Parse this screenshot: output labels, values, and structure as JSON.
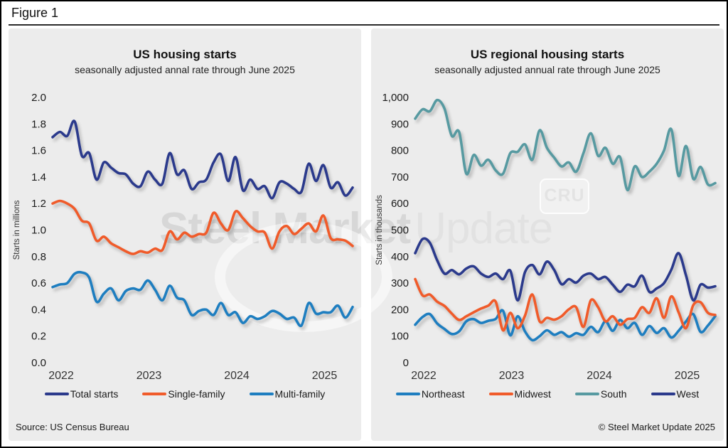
{
  "figure_label": "Figure 1",
  "watermark": {
    "text_bold": "Steel Market",
    "text_light": "Update",
    "logo": "CRU"
  },
  "footnotes": {
    "source": "Source: US Census Bureau",
    "copyright": "© Steel Market Update 2025"
  },
  "panel_bg": "#ececec",
  "chart_data": [
    {
      "type": "line",
      "title": "US housing starts",
      "subtitle": "seasonally adjusted annal rate through June 2025",
      "ylabel": "Starts in millions",
      "xlabel": "",
      "x_range": "Jan 2022 – Jun 2025, monthly (42 points)",
      "grid": false,
      "legend_position": "bottom",
      "ylim": [
        0,
        2.0
      ],
      "yticks": [
        {
          "label": "2.0",
          "value": 2.0
        },
        {
          "label": "1.8",
          "value": 1.8
        },
        {
          "label": "1.6",
          "value": 1.6
        },
        {
          "label": "1.4",
          "value": 1.4
        },
        {
          "label": "1.2",
          "value": 1.2
        },
        {
          "label": "1.0",
          "value": 1.0
        },
        {
          "label": "0.8",
          "value": 0.8
        },
        {
          "label": "0.6",
          "value": 0.6
        },
        {
          "label": "0.4",
          "value": 0.4
        },
        {
          "label": "0.2",
          "value": 0.2
        },
        {
          "label": "0.0",
          "value": 0.0
        }
      ],
      "xticks": [
        {
          "label": "2022",
          "month": 0
        },
        {
          "label": "2023",
          "month": 12
        },
        {
          "label": "2024",
          "month": 24
        },
        {
          "label": "2025",
          "month": 36
        }
      ],
      "series": [
        {
          "name": "Total starts",
          "color": "#2b3a8c",
          "values": [
            1.7,
            1.74,
            1.71,
            1.82,
            1.56,
            1.58,
            1.38,
            1.51,
            1.47,
            1.43,
            1.42,
            1.35,
            1.33,
            1.44,
            1.38,
            1.35,
            1.58,
            1.42,
            1.45,
            1.31,
            1.36,
            1.38,
            1.51,
            1.57,
            1.37,
            1.55,
            1.3,
            1.38,
            1.31,
            1.33,
            1.24,
            1.36,
            1.35,
            1.31,
            1.29,
            1.5,
            1.37,
            1.49,
            1.32,
            1.36,
            1.26,
            1.32
          ]
        },
        {
          "name": "Single-family",
          "color": "#f05b2a",
          "values": [
            1.2,
            1.22,
            1.2,
            1.16,
            1.07,
            1.05,
            0.92,
            0.95,
            0.9,
            0.87,
            0.84,
            0.82,
            0.84,
            0.83,
            0.86,
            0.85,
            0.99,
            0.93,
            0.98,
            0.95,
            0.97,
            0.98,
            1.13,
            1.05,
            1.0,
            1.14,
            1.09,
            1.03,
            0.99,
            0.98,
            0.86,
            0.99,
            1.03,
            0.97,
            1.01,
            1.05,
            0.99,
            1.11,
            0.94,
            0.93,
            0.92,
            0.88
          ]
        },
        {
          "name": "Multi-family",
          "color": "#1e7ec0",
          "values": [
            0.57,
            0.59,
            0.6,
            0.67,
            0.68,
            0.64,
            0.46,
            0.52,
            0.56,
            0.47,
            0.54,
            0.56,
            0.55,
            0.62,
            0.55,
            0.47,
            0.58,
            0.49,
            0.47,
            0.36,
            0.39,
            0.4,
            0.36,
            0.45,
            0.36,
            0.38,
            0.3,
            0.35,
            0.33,
            0.35,
            0.39,
            0.37,
            0.33,
            0.34,
            0.28,
            0.45,
            0.37,
            0.38,
            0.38,
            0.43,
            0.34,
            0.42
          ]
        }
      ]
    },
    {
      "type": "line",
      "title": "US regional housing starts",
      "subtitle": "seasonally adjusted annual rate through June 2025",
      "ylabel": "Starts in thousands",
      "xlabel": "",
      "x_range": "Jan 2022 – Jun 2025, monthly (42 points)",
      "grid": false,
      "legend_position": "bottom",
      "ylim": [
        0,
        1000
      ],
      "yticks": [
        {
          "label": "1,000",
          "value": 1000
        },
        {
          "label": "900",
          "value": 900
        },
        {
          "label": "800",
          "value": 800
        },
        {
          "label": "700",
          "value": 700
        },
        {
          "label": "600",
          "value": 600
        },
        {
          "label": "500",
          "value": 500
        },
        {
          "label": "400",
          "value": 400
        },
        {
          "label": "300",
          "value": 300
        },
        {
          "label": "200",
          "value": 200
        },
        {
          "label": "100",
          "value": 100
        },
        {
          "label": "0",
          "value": 0
        }
      ],
      "xticks": [
        {
          "label": "2022",
          "month": 0
        },
        {
          "label": "2023",
          "month": 12
        },
        {
          "label": "2024",
          "month": 24
        },
        {
          "label": "2025",
          "month": 36
        }
      ],
      "series": [
        {
          "name": "Northeast",
          "color": "#1e7ec0",
          "values": [
            143,
            172,
            183,
            148,
            127,
            108,
            118,
            156,
            164,
            150,
            158,
            165,
            196,
            103,
            175,
            118,
            85,
            100,
            122,
            105,
            115,
            98,
            111,
            105,
            135,
            115,
            156,
            120,
            161,
            130,
            150,
            105,
            138,
            112,
            130,
            95,
            120,
            155,
            183,
            116,
            140,
            175
          ]
        },
        {
          "name": "Midwest",
          "color": "#f05b2a",
          "values": [
            315,
            254,
            257,
            230,
            214,
            185,
            161,
            175,
            190,
            204,
            215,
            230,
            122,
            188,
            130,
            177,
            257,
            156,
            169,
            162,
            175,
            201,
            209,
            135,
            235,
            209,
            156,
            175,
            143,
            164,
            169,
            209,
            188,
            243,
            169,
            250,
            190,
            130,
            217,
            228,
            188,
            180
          ]
        },
        {
          "name": "South",
          "color": "#579aa1",
          "values": [
            920,
            955,
            948,
            990,
            958,
            855,
            870,
            712,
            783,
            743,
            765,
            725,
            712,
            790,
            795,
            823,
            765,
            876,
            810,
            773,
            740,
            755,
            720,
            790,
            865,
            780,
            810,
            750,
            775,
            651,
            740,
            700,
            720,
            750,
            800,
            880,
            704,
            817,
            693,
            738,
            672,
            677
          ]
        },
        {
          "name": "West",
          "color": "#2b3a8c",
          "values": [
            413,
            466,
            452,
            386,
            336,
            349,
            333,
            355,
            363,
            336,
            323,
            336,
            315,
            347,
            235,
            341,
            368,
            333,
            381,
            349,
            296,
            315,
            302,
            328,
            336,
            315,
            323,
            294,
            267,
            294,
            288,
            328,
            267,
            280,
            300,
            350,
            413,
            330,
            235,
            294,
            283,
            288
          ]
        }
      ]
    }
  ]
}
